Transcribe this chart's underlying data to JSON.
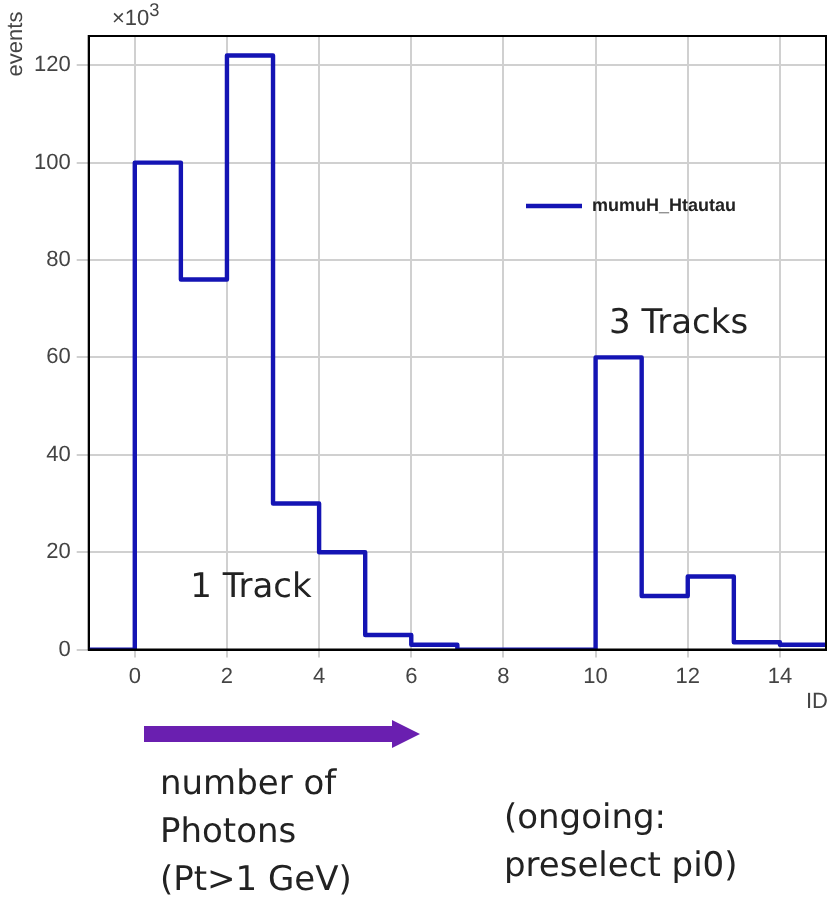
{
  "chart_data": {
    "type": "histogram",
    "ylabel": "events",
    "xlabel": "ID",
    "bins": [
      -1,
      0,
      1,
      2,
      3,
      4,
      5,
      6,
      7,
      8,
      9,
      10,
      11,
      12,
      13,
      14,
      15
    ],
    "series": [
      {
        "name": "mumuH_Htautau",
        "color": "#1414b4",
        "values": [
          0,
          100,
          76,
          122,
          30,
          20,
          3,
          1,
          0,
          0,
          0,
          60,
          11,
          15,
          1.5,
          1
        ]
      }
    ],
    "xlim": [
      -1,
      15
    ],
    "xticks": [
      0,
      2,
      4,
      6,
      8,
      10,
      12,
      14
    ],
    "ylim": [
      0,
      126
    ],
    "yticks": [
      0,
      20,
      40,
      60,
      80,
      100,
      120
    ],
    "grid": true,
    "legend": "right",
    "annotations": [
      "×10$^{3}$",
      "1 Track",
      "3 Tracks",
      "number of Photons (Pt>1 GeV)",
      "(ongoing: preselect pi0)"
    ]
  }
}
